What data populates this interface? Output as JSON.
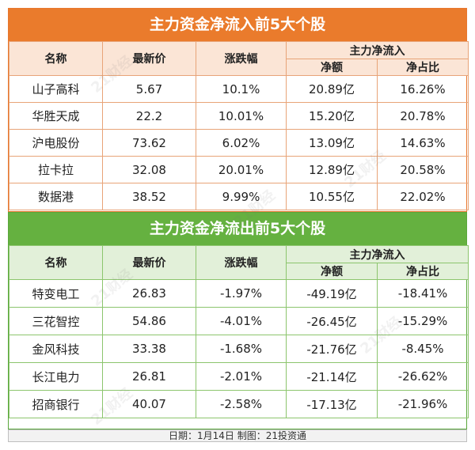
{
  "inflow": {
    "title": "主力资金净流入前5大个股",
    "headers": {
      "name": "名称",
      "price": "最新价",
      "change": "涨跌幅",
      "net": "主力净流入",
      "amount": "净额",
      "ratio": "净占比"
    },
    "rows": [
      {
        "name": "山子高科",
        "price": "5.67",
        "change": "10.1%",
        "amount": "20.89亿",
        "ratio": "16.26%"
      },
      {
        "name": "华胜天成",
        "price": "22.2",
        "change": "10.01%",
        "amount": "15.20亿",
        "ratio": "20.78%"
      },
      {
        "name": "沪电股份",
        "price": "73.62",
        "change": "6.02%",
        "amount": "13.09亿",
        "ratio": "14.63%"
      },
      {
        "name": "拉卡拉",
        "price": "32.08",
        "change": "20.01%",
        "amount": "12.89亿",
        "ratio": "20.58%"
      },
      {
        "name": "数据港",
        "price": "38.52",
        "change": "9.99%",
        "amount": "10.55亿",
        "ratio": "22.02%"
      }
    ]
  },
  "outflow": {
    "title": "主力资金净流出前5大个股",
    "headers": {
      "name": "名称",
      "price": "最新价",
      "change": "涨跌幅",
      "net": "主力净流入",
      "amount": "净额",
      "ratio": "净占比"
    },
    "rows": [
      {
        "name": "特变电工",
        "price": "26.83",
        "change": "-1.97%",
        "amount": "-49.19亿",
        "ratio": "-18.41%"
      },
      {
        "name": "三花智控",
        "price": "54.86",
        "change": "-4.01%",
        "amount": "-26.45亿",
        "ratio": "-15.29%"
      },
      {
        "name": "金风科技",
        "price": "33.38",
        "change": "-1.68%",
        "amount": "-21.76亿",
        "ratio": "-8.45%"
      },
      {
        "name": "长江电力",
        "price": "26.81",
        "change": "-2.01%",
        "amount": "-21.14亿",
        "ratio": "-26.62%"
      },
      {
        "name": "招商银行",
        "price": "40.07",
        "change": "-2.58%",
        "amount": "-17.13亿",
        "ratio": "-21.96%"
      }
    ]
  },
  "footer": "日期：1月14日 制图：21投资通",
  "watermark": "21财经",
  "colors": {
    "inflow_accent": "#ea7b2c",
    "outflow_accent": "#65b140"
  }
}
